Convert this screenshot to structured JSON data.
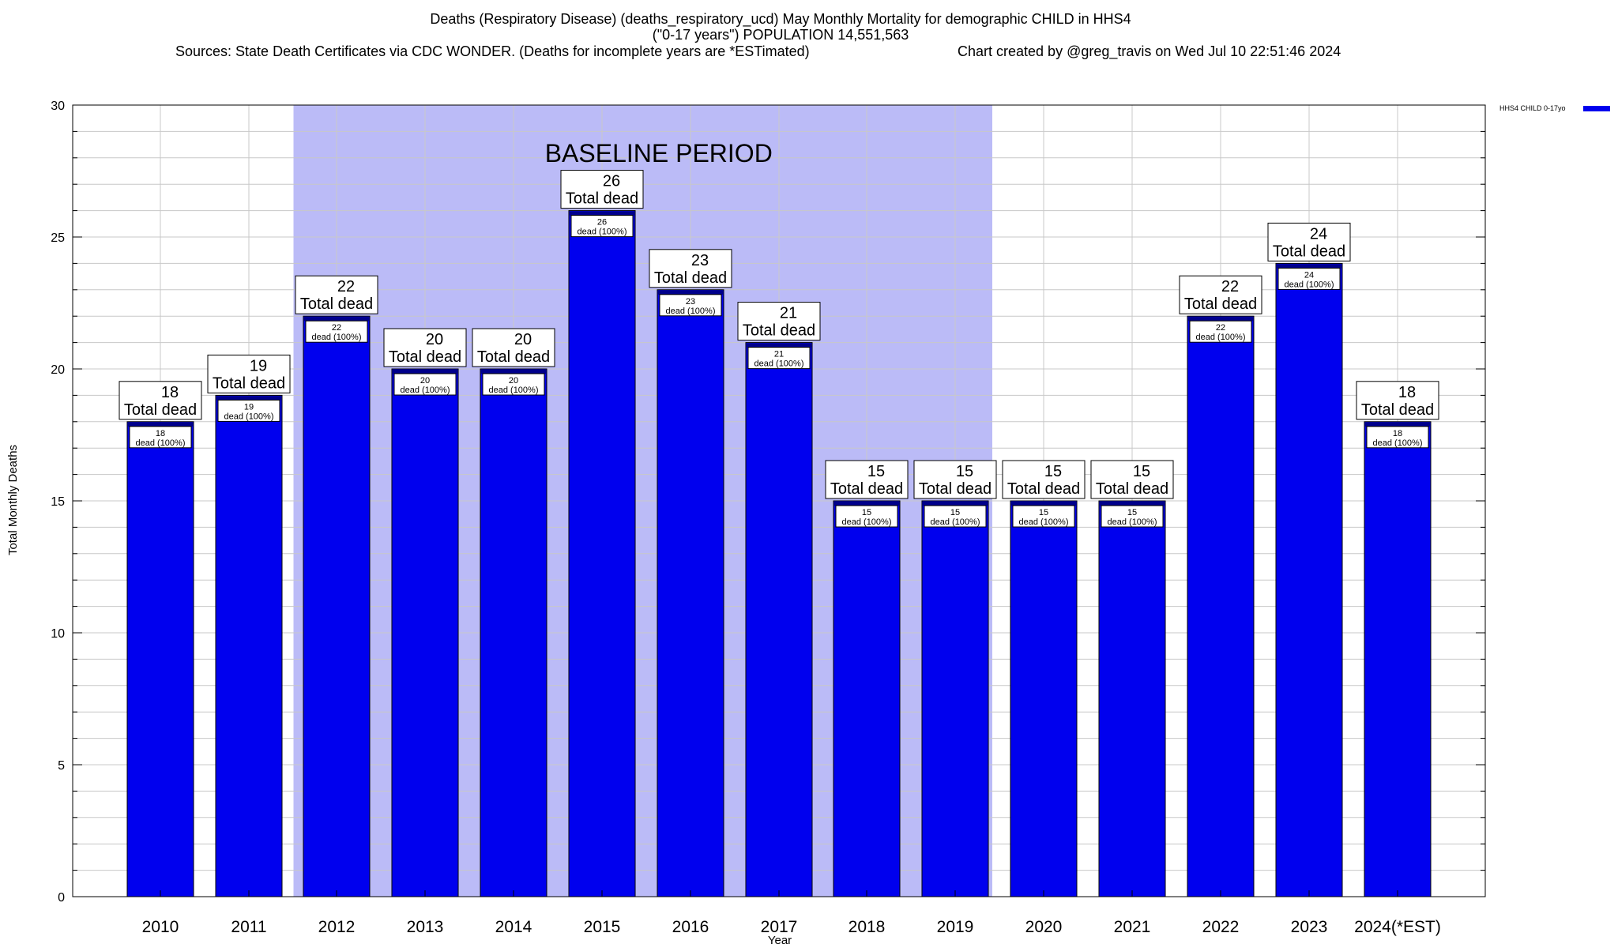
{
  "title": {
    "line1": "Deaths (Respiratory Disease) (deaths_respiratory_ucd) May Monthly Mortality for demographic CHILD in HHS4",
    "line2": "(\"0-17 years\") POPULATION 14,551,563",
    "line3_left": "Sources: State Death Certificates via CDC WONDER. (Deaths for incomplete years are *ESTimated)",
    "line3_right": "Chart created by @greg_travis on Wed Jul 10 22:51:46 2024"
  },
  "chart_data": {
    "type": "bar",
    "categories": [
      "2010",
      "2011",
      "2012",
      "2013",
      "2014",
      "2015",
      "2016",
      "2017",
      "2018",
      "2019",
      "2020",
      "2021",
      "2022",
      "2023",
      "2024(*EST)"
    ],
    "series": [
      {
        "name": "HHS4 CHILD 0-17yo",
        "values": [
          18,
          19,
          22,
          20,
          20,
          26,
          23,
          21,
          15,
          15,
          15,
          15,
          22,
          24,
          18
        ]
      }
    ],
    "xlabel": "Year",
    "ylabel": "Total Monthly Deaths",
    "ylim": [
      0,
      30
    ],
    "yticks": [
      0,
      5,
      10,
      15,
      20,
      25,
      30
    ],
    "grid": true,
    "legend_position": "top-right",
    "bar_top_label": "Total dead",
    "bar_inner_label": "dead (100%)",
    "baseline": {
      "label": "BASELINE PERIOD",
      "start": "2012",
      "end": "2019"
    },
    "colors": {
      "bar": "#0000ee",
      "bar_top_stripe": "#00008b",
      "baseline_shade": "#bbbbf7",
      "grid": "#c8c8c8"
    }
  }
}
